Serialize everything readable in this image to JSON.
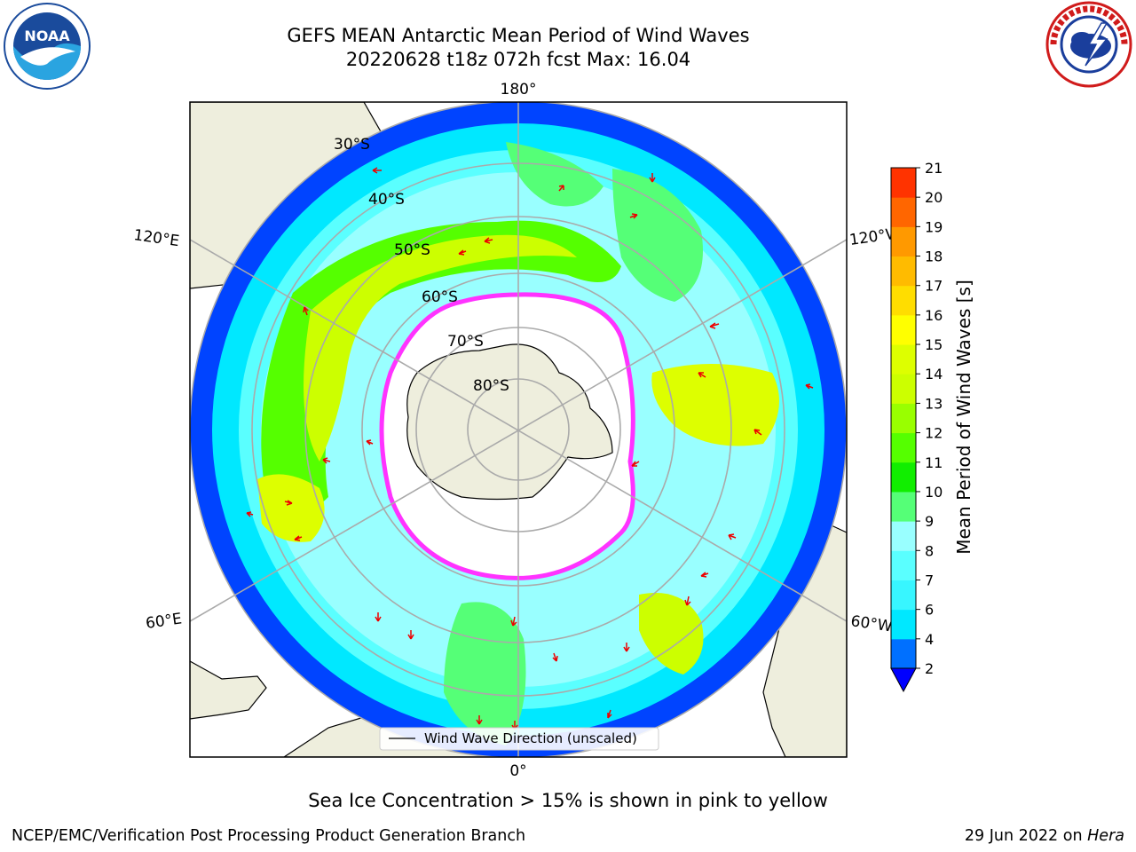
{
  "title": {
    "line1": "GEFS MEAN Antarctic Mean Period of Wind Waves",
    "line2": "20220628 t18z 072h fcst   Max: 16.04"
  },
  "logos": {
    "left": {
      "name": "noaa-logo",
      "text": "NOAA",
      "ring_text": "NATIONAL OCEANIC AND ATMOSPHERIC ADMINISTRATION · U.S. DEPARTMENT OF COMMERCE"
    },
    "right": {
      "name": "nws-logo",
      "ring_text": "NATIONAL WEATHER SERVICE"
    }
  },
  "map": {
    "longitude_labels": {
      "top": "180°",
      "bottom": "0°",
      "left_upper": "120°E",
      "left_lower": "60°E",
      "right_upper": "120°W",
      "right_lower": "60°W"
    },
    "latitude_labels": [
      "30°S",
      "40°S",
      "50°S",
      "60°S",
      "70°S",
      "80°S"
    ],
    "legend_label": "Wind Wave Direction (unscaled)",
    "colors": {
      "land": "#eeeedd",
      "ocean_blue": "#0044ff",
      "arrow": "#ee0000",
      "ice_edge": "#ff33ff"
    }
  },
  "colorbar": {
    "title": "Mean Period of Wind Waves [s]",
    "ticks": [
      "2",
      "4",
      "6",
      "7",
      "8",
      "9",
      "10",
      "11",
      "12",
      "13",
      "14",
      "15",
      "16",
      "17",
      "18",
      "19",
      "20",
      "21"
    ],
    "colors": [
      "#0070ff",
      "#00e8ff",
      "#38f6ff",
      "#5affff",
      "#99ffff",
      "#55ff77",
      "#11ee00",
      "#55ff00",
      "#99ff00",
      "#ccff00",
      "#ddff00",
      "#ffff00",
      "#ffdd00",
      "#ffbb00",
      "#ff9900",
      "#ff6600",
      "#ff3300",
      "#ff0000"
    ],
    "extend_color": "#0000ff"
  },
  "caption": "Sea Ice Concentration > 15% is shown in pink to yellow",
  "footer": {
    "left": "NCEP/EMC/Verification Post Processing Product Generation Branch",
    "right_date": "29 Jun 2022 on",
    "right_host": "Hera"
  }
}
